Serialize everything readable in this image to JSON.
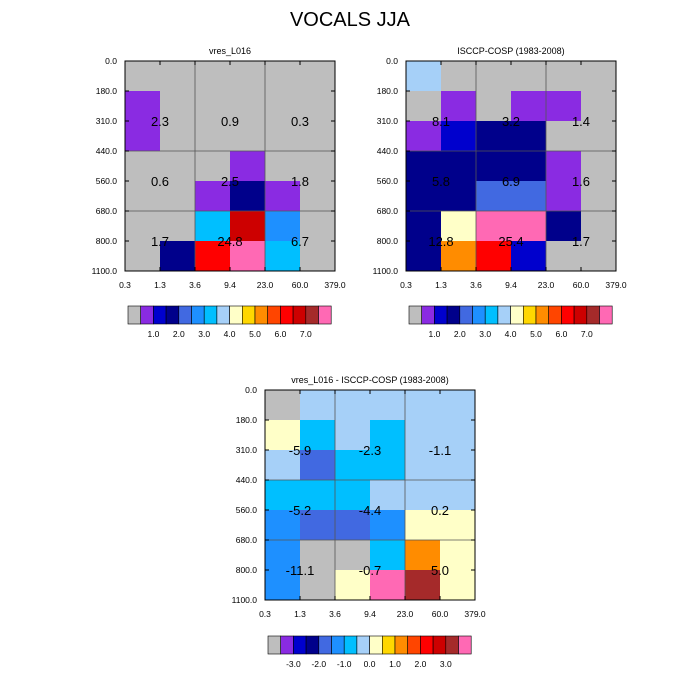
{
  "title": "VOCALS JJA",
  "palette": {
    "gray": "#bebebe",
    "violet": "#8a2be2",
    "blue": "#0000cd",
    "navy": "#00008b",
    "royal": "#4169e1",
    "sky": "#1e90ff",
    "deepsky": "#00bfff",
    "lightsky": "#a6d0f8",
    "cream": "#ffffc8",
    "yellow": "#ffd700",
    "orange": "#ff8c00",
    "redorange": "#ff4500",
    "red": "#ff0000",
    "crimson": "#cd0000",
    "brown": "#a52a2a",
    "pink": "#ff69b4"
  },
  "chart_data": [
    {
      "type": "heatmap",
      "title": "vres_L016",
      "x_ticks": [
        "0.3",
        "1.3",
        "3.6",
        "9.4",
        "23.0",
        "60.0",
        "379.0"
      ],
      "y_ticks": [
        "0.0",
        "180.0",
        "310.0",
        "440.0",
        "560.0",
        "680.0",
        "800.0",
        "1100.0"
      ],
      "cells": [
        [
          "gray",
          "gray",
          "gray",
          "gray",
          "gray",
          "gray"
        ],
        [
          "violet",
          "gray",
          "gray",
          "gray",
          "gray",
          "gray"
        ],
        [
          "violet",
          "gray",
          "gray",
          "gray",
          "gray",
          "gray"
        ],
        [
          "gray",
          "gray",
          "gray",
          "violet",
          "gray",
          "gray"
        ],
        [
          "gray",
          "gray",
          "violet",
          "navy",
          "violet",
          "gray"
        ],
        [
          "gray",
          "gray",
          "deepsky",
          "crimson",
          "sky",
          "gray"
        ],
        [
          "gray",
          "navy",
          "red",
          "pink",
          "deepsky",
          "gray"
        ]
      ],
      "annotations": [
        {
          "col": 0,
          "row": 0,
          "text": "2.3"
        },
        {
          "col": 1,
          "row": 0,
          "text": "0.9"
        },
        {
          "col": 2,
          "row": 0,
          "text": "0.3"
        },
        {
          "col": 0,
          "row": 1,
          "text": "0.6"
        },
        {
          "col": 1,
          "row": 1,
          "text": "2.5"
        },
        {
          "col": 2,
          "row": 1,
          "text": "1.8"
        },
        {
          "col": 0,
          "row": 2,
          "text": "1.7"
        },
        {
          "col": 1,
          "row": 2,
          "text": "24.8"
        },
        {
          "col": 2,
          "row": 2,
          "text": "6.7"
        }
      ],
      "colorbar": {
        "colors": [
          "gray",
          "violet",
          "blue",
          "navy",
          "royal",
          "sky",
          "deepsky",
          "lightsky",
          "cream",
          "yellow",
          "orange",
          "redorange",
          "red",
          "crimson",
          "brown",
          "pink"
        ],
        "labels": [
          {
            "after": 2,
            "text": "1.0"
          },
          {
            "after": 4,
            "text": "2.0"
          },
          {
            "after": 6,
            "text": "3.0"
          },
          {
            "after": 8,
            "text": "4.0"
          },
          {
            "after": 10,
            "text": "5.0"
          },
          {
            "after": 12,
            "text": "6.0"
          },
          {
            "after": 14,
            "text": "7.0"
          }
        ]
      }
    },
    {
      "type": "heatmap",
      "title": "ISCCP-COSP (1983-2008)",
      "x_ticks": [
        "0.3",
        "1.3",
        "3.6",
        "9.4",
        "23.0",
        "60.0",
        "379.0"
      ],
      "y_ticks": [
        "0.0",
        "180.0",
        "310.0",
        "440.0",
        "560.0",
        "680.0",
        "800.0",
        "1100.0"
      ],
      "cells": [
        [
          "lightsky",
          "gray",
          "gray",
          "gray",
          "gray",
          "gray"
        ],
        [
          "gray",
          "violet",
          "gray",
          "violet",
          "violet",
          "gray"
        ],
        [
          "violet",
          "blue",
          "navy",
          "navy",
          "gray",
          "gray"
        ],
        [
          "navy",
          "navy",
          "navy",
          "navy",
          "violet",
          "gray"
        ],
        [
          "navy",
          "navy",
          "royal",
          "royal",
          "violet",
          "gray"
        ],
        [
          "navy",
          "cream",
          "pink",
          "pink",
          "navy",
          "gray"
        ],
        [
          "navy",
          "orange",
          "red",
          "blue",
          "gray",
          "gray"
        ]
      ],
      "annotations": [
        {
          "col": 0,
          "row": 0,
          "text": "8.1"
        },
        {
          "col": 1,
          "row": 0,
          "text": "3.2"
        },
        {
          "col": 2,
          "row": 0,
          "text": "1.4"
        },
        {
          "col": 0,
          "row": 1,
          "text": "5.8"
        },
        {
          "col": 1,
          "row": 1,
          "text": "6.9"
        },
        {
          "col": 2,
          "row": 1,
          "text": "1.6"
        },
        {
          "col": 0,
          "row": 2,
          "text": "12.8"
        },
        {
          "col": 1,
          "row": 2,
          "text": "25.4"
        },
        {
          "col": 2,
          "row": 2,
          "text": "1.7"
        }
      ],
      "colorbar": {
        "colors": [
          "gray",
          "violet",
          "blue",
          "navy",
          "royal",
          "sky",
          "deepsky",
          "lightsky",
          "cream",
          "yellow",
          "orange",
          "redorange",
          "red",
          "crimson",
          "brown",
          "pink"
        ],
        "labels": [
          {
            "after": 2,
            "text": "1.0"
          },
          {
            "after": 4,
            "text": "2.0"
          },
          {
            "after": 6,
            "text": "3.0"
          },
          {
            "after": 8,
            "text": "4.0"
          },
          {
            "after": 10,
            "text": "5.0"
          },
          {
            "after": 12,
            "text": "6.0"
          },
          {
            "after": 14,
            "text": "7.0"
          }
        ]
      }
    },
    {
      "type": "heatmap",
      "title": "vres_L016 - ISCCP-COSP (1983-2008)",
      "x_ticks": [
        "0.3",
        "1.3",
        "3.6",
        "9.4",
        "23.0",
        "60.0",
        "379.0"
      ],
      "y_ticks": [
        "0.0",
        "180.0",
        "310.0",
        "440.0",
        "560.0",
        "680.0",
        "800.0",
        "1100.0"
      ],
      "cells": [
        [
          "gray",
          "lightsky",
          "lightsky",
          "lightsky",
          "lightsky",
          "lightsky"
        ],
        [
          "cream",
          "deepsky",
          "lightsky",
          "deepsky",
          "lightsky",
          "lightsky"
        ],
        [
          "lightsky",
          "royal",
          "deepsky",
          "deepsky",
          "lightsky",
          "lightsky"
        ],
        [
          "deepsky",
          "deepsky",
          "deepsky",
          "lightsky",
          "lightsky",
          "lightsky"
        ],
        [
          "sky",
          "royal",
          "royal",
          "sky",
          "cream",
          "cream"
        ],
        [
          "sky",
          "gray",
          "gray",
          "deepsky",
          "orange",
          "cream"
        ],
        [
          "sky",
          "gray",
          "cream",
          "pink",
          "brown",
          "cream"
        ]
      ],
      "annotations": [
        {
          "col": 0,
          "row": 0,
          "text": "-5.9"
        },
        {
          "col": 1,
          "row": 0,
          "text": "-2.3"
        },
        {
          "col": 2,
          "row": 0,
          "text": "-1.1"
        },
        {
          "col": 0,
          "row": 1,
          "text": "-5.2"
        },
        {
          "col": 1,
          "row": 1,
          "text": "-4.4"
        },
        {
          "col": 2,
          "row": 1,
          "text": "0.2"
        },
        {
          "col": 0,
          "row": 2,
          "text": "-11.1"
        },
        {
          "col": 1,
          "row": 2,
          "text": "-0.7"
        },
        {
          "col": 2,
          "row": 2,
          "text": "5.0"
        }
      ],
      "colorbar": {
        "colors": [
          "gray",
          "violet",
          "blue",
          "navy",
          "royal",
          "sky",
          "deepsky",
          "lightsky",
          "cream",
          "yellow",
          "orange",
          "redorange",
          "red",
          "crimson",
          "brown",
          "pink"
        ],
        "labels": [
          {
            "after": 2,
            "text": "-3.0"
          },
          {
            "after": 4,
            "text": "-2.0"
          },
          {
            "after": 6,
            "text": "-1.0"
          },
          {
            "after": 8,
            "text": "0.0"
          },
          {
            "after": 10,
            "text": "1.0"
          },
          {
            "after": 12,
            "text": "2.0"
          },
          {
            "after": 14,
            "text": "3.0"
          }
        ]
      }
    }
  ]
}
